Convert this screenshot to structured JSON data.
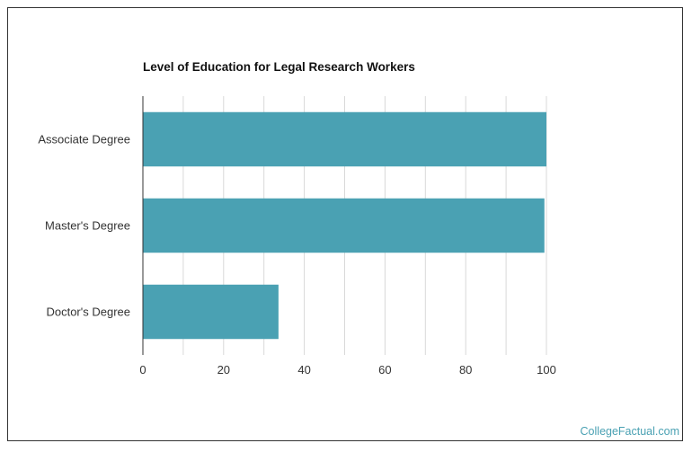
{
  "chart_data": {
    "type": "bar",
    "orientation": "horizontal",
    "title": "Level of Education for Legal Research Workers",
    "categories": [
      "Associate Degree",
      "Master's Degree",
      "Doctor's Degree"
    ],
    "values": [
      100,
      99.5,
      33.6
    ],
    "xlim": [
      0,
      100
    ],
    "xticks": [
      "0",
      "20",
      "40",
      "60",
      "80",
      "100"
    ],
    "xlabel": "",
    "ylabel": "",
    "grid": true,
    "bar_color": "#4aa1b3"
  },
  "watermark": "CollegeFactual.com"
}
